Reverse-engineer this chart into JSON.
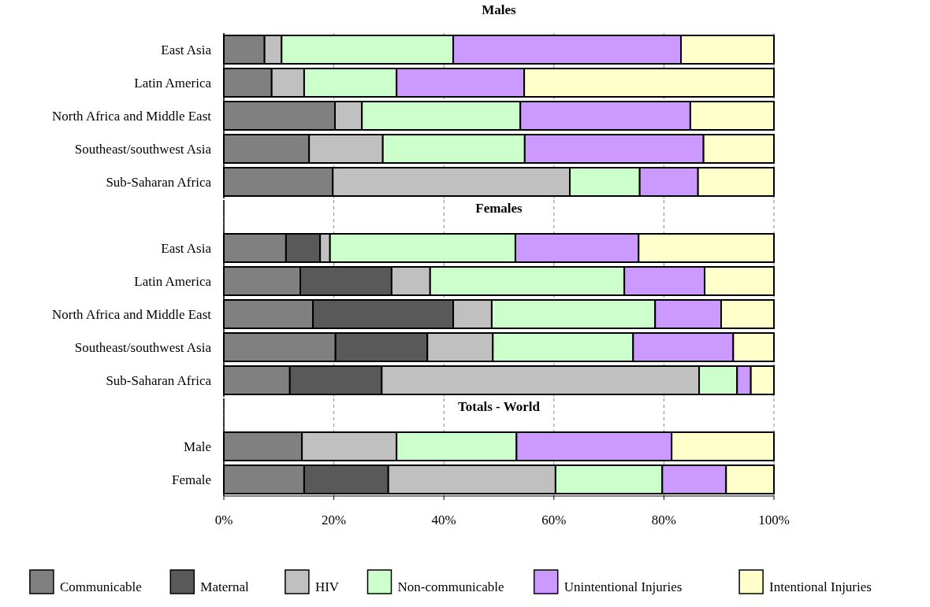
{
  "chart_data": [
    {
      "type": "bar",
      "orientation": "horizontal",
      "stacked": true,
      "title": "Males",
      "categories": [
        "East Asia",
        "Latin America",
        "North Africa and Middle East",
        "Southeast/southwest Asia",
        "Sub-Saharan Africa"
      ],
      "xlim": [
        0,
        100
      ],
      "xticks": [
        0,
        20,
        40,
        60,
        80,
        100
      ],
      "tick_labels": "y",
      "grid": "x",
      "series": [
        {
          "color": "#808080",
          "values": [
            7.4,
            8.7,
            20.2,
            15.5,
            19.8
          ]
        },
        {
          "color": "#595959",
          "values": [
            0,
            0,
            0,
            0,
            0
          ]
        },
        {
          "color": "#c0c0c0",
          "values": [
            3.1,
            5.9,
            4.9,
            13.4,
            43.1
          ]
        },
        {
          "color": "#ccffcc",
          "values": [
            31.2,
            16.8,
            28.8,
            25.8,
            12.7
          ]
        },
        {
          "color": "#cc99ff",
          "values": [
            41.4,
            23.2,
            30.9,
            32.5,
            10.6
          ]
        },
        {
          "color": "#ffffcc",
          "values": [
            16.9,
            45.4,
            15.2,
            12.8,
            13.8
          ]
        }
      ]
    },
    {
      "type": "bar",
      "orientation": "horizontal",
      "stacked": true,
      "title": "Females",
      "categories": [
        "East Asia",
        "Latin America",
        "North Africa and Middle East",
        "Southeast/southwest Asia",
        "Sub-Saharan Africa"
      ],
      "xlim": [
        0,
        100
      ],
      "xticks": [
        0,
        20,
        40,
        60,
        80,
        100
      ],
      "tick_labels": "y",
      "grid": "x",
      "series": [
        {
          "color": "#808080",
          "values": [
            11.3,
            13.9,
            16.2,
            20.3,
            12.0
          ]
        },
        {
          "color": "#595959",
          "values": [
            6.2,
            16.6,
            25.5,
            16.7,
            16.7
          ]
        },
        {
          "color": "#c0c0c0",
          "values": [
            1.8,
            7.0,
            7.0,
            11.9,
            57.7
          ]
        },
        {
          "color": "#ccffcc",
          "values": [
            33.7,
            35.3,
            29.7,
            25.5,
            6.9
          ]
        },
        {
          "color": "#cc99ff",
          "values": [
            22.4,
            14.6,
            12.0,
            18.2,
            2.5
          ]
        },
        {
          "color": "#ffffcc",
          "values": [
            24.6,
            12.6,
            9.6,
            7.4,
            4.2
          ]
        }
      ]
    },
    {
      "type": "bar",
      "orientation": "horizontal",
      "stacked": true,
      "title": "Totals - World",
      "categories": [
        "Male",
        "Female"
      ],
      "xlim": [
        0,
        100
      ],
      "xticks": [
        {
          "value": 0,
          "label": "0%"
        },
        {
          "value": 20,
          "label": "20%"
        },
        {
          "value": 40,
          "label": "40%"
        },
        {
          "value": 60,
          "label": "60%"
        },
        {
          "value": 80,
          "label": "80%"
        },
        {
          "value": 100,
          "label": "100%"
        }
      ],
      "grid": "x",
      "legend": "bottom",
      "series": [
        {
          "name": "Communicable",
          "color": "#808080",
          "values": [
            14.2,
            14.6
          ]
        },
        {
          "name": "Maternal",
          "color": "#595959",
          "values": [
            0,
            15.3
          ]
        },
        {
          "name": "HIV",
          "color": "#c0c0c0",
          "values": [
            17.2,
            30.4
          ]
        },
        {
          "name": "Non-communicable",
          "color": "#ccffcc",
          "values": [
            21.8,
            19.4
          ]
        },
        {
          "name": "Unintentional Injuries",
          "color": "#cc99ff",
          "values": [
            28.2,
            11.6
          ]
        },
        {
          "name": "Intentional Injuries",
          "color": "#ffffcc",
          "values": [
            18.6,
            8.7
          ]
        }
      ]
    }
  ]
}
